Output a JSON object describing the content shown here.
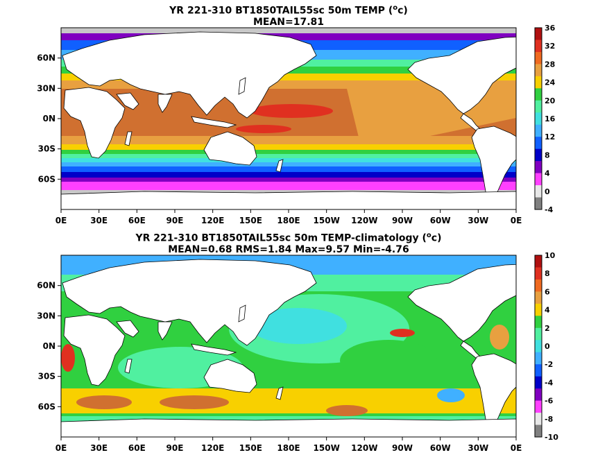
{
  "panels": [
    {
      "title_line1": "YR 221-310 BT1850TAIL55sc 50m TEMP (",
      "title_unit_sup": "o",
      "title_unit_end": "c)",
      "title_line2": "MEAN=17.81",
      "colorbar": {
        "ticks": [
          "36",
          "32",
          "28",
          "24",
          "20",
          "16",
          "12",
          "8",
          "4",
          "0",
          "-4"
        ],
        "colors": [
          "#b01010",
          "#e03020",
          "#f06a20",
          "#e8a040",
          "#f8d000",
          "#30d040",
          "#50f0a0",
          "#40e0e0",
          "#40b0ff",
          "#1060ff",
          "#0000c8",
          "#8000c0",
          "#ff40ff",
          "#e8e8e8",
          "#808080"
        ]
      }
    },
    {
      "title_line1": "YR 221-310 BT1850TAIL55sc 50m TEMP-climatology (",
      "title_unit_sup": "o",
      "title_unit_end": "c)",
      "title_line2": "MEAN=0.68   RMS=1.84   Max=9.57   Min=-4.76",
      "colorbar": {
        "ticks": [
          "10",
          "8",
          "6",
          "4",
          "2",
          "0",
          "-2",
          "-4",
          "-6",
          "-8",
          "-10"
        ],
        "colors": [
          "#b01010",
          "#e03020",
          "#f06a20",
          "#e8a040",
          "#f8d000",
          "#30d040",
          "#50f0a0",
          "#40e0e0",
          "#40b0ff",
          "#1060ff",
          "#0000c8",
          "#8000c0",
          "#ff40ff",
          "#e8e8e8",
          "#808080"
        ]
      }
    }
  ],
  "axes": {
    "lon_labels": [
      "0E",
      "30E",
      "60E",
      "90E",
      "120E",
      "150E",
      "180E",
      "150W",
      "120W",
      "90W",
      "60W",
      "30W",
      "0E"
    ],
    "lat_labels": [
      "60N",
      "30N",
      "0N",
      "30S",
      "60S"
    ]
  }
}
